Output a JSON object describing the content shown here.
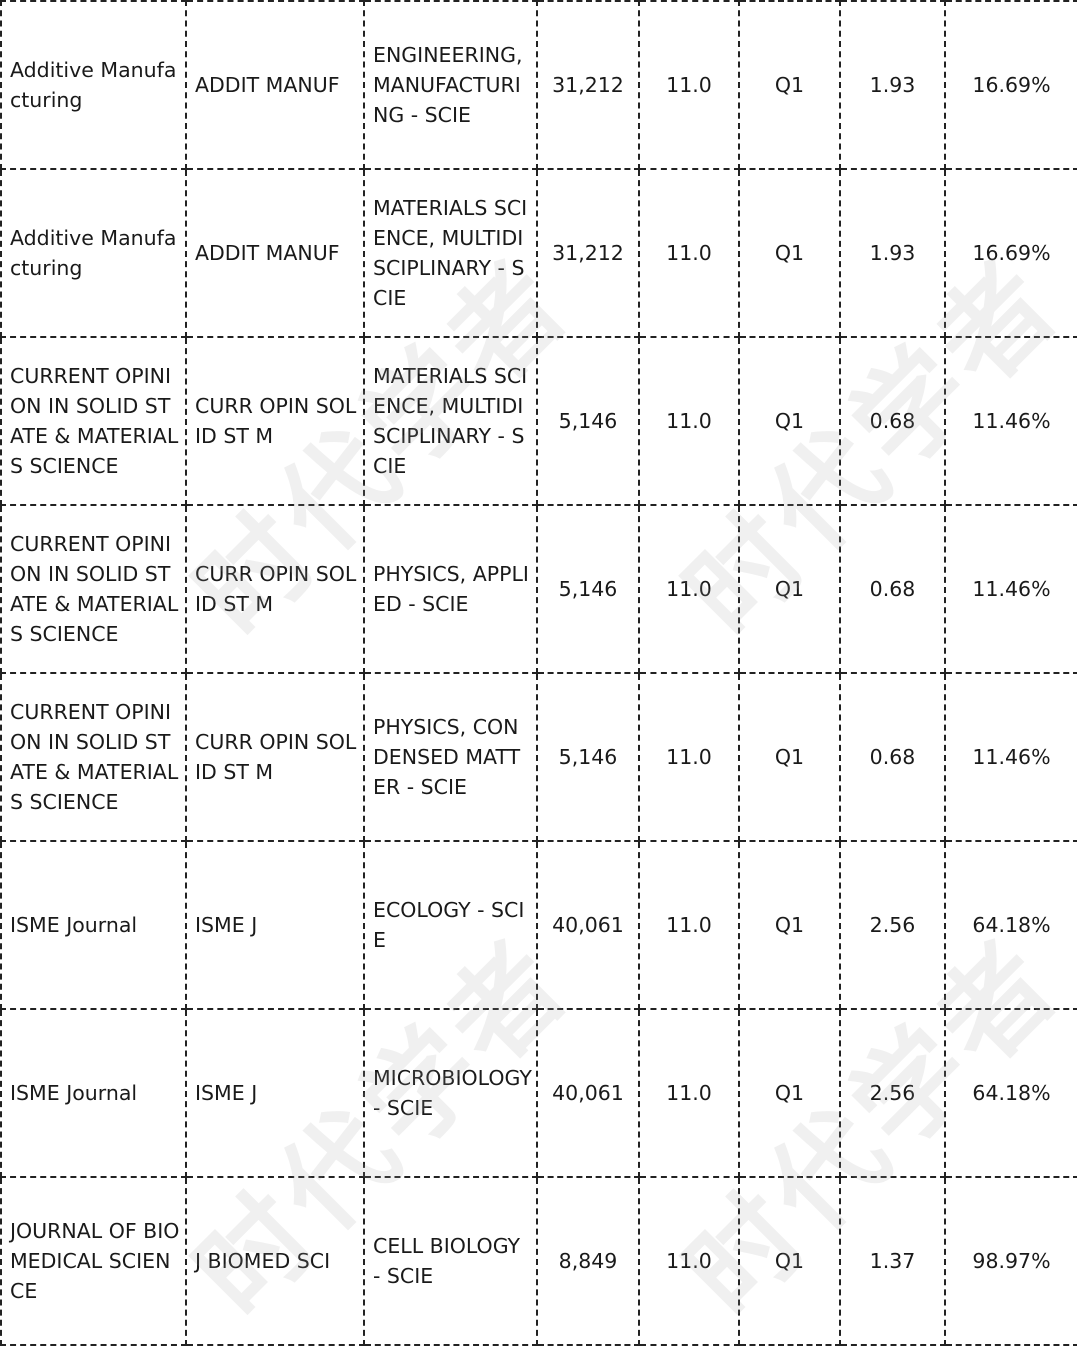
{
  "rows": [
    {
      "full_title": "Additive Manufacturing",
      "abbrev": "ADDIT MANUF",
      "category": "ENGINEERING, MANUFACTURING - SCIE",
      "citations": "31,212",
      "jif": "11.0",
      "quartile": "Q1",
      "jci": "1.93",
      "oa": "16.69%"
    },
    {
      "full_title": "Additive Manufacturing",
      "abbrev": "ADDIT MANUF",
      "category": "MATERIALS SCIENCE, MULTIDISCIPLINARY - SCIE",
      "citations": "31,212",
      "jif": "11.0",
      "quartile": "Q1",
      "jci": "1.93",
      "oa": "16.69%"
    },
    {
      "full_title": "CURRENT OPINION IN SOLID STATE & MATERIALS SCIENCE",
      "abbrev": "CURR OPIN SOLID ST M",
      "category": "MATERIALS SCIENCE, MULTIDISCIPLINARY - SCIE",
      "citations": "5,146",
      "jif": "11.0",
      "quartile": "Q1",
      "jci": "0.68",
      "oa": "11.46%"
    },
    {
      "full_title": "CURRENT OPINION IN SOLID STATE & MATERIALS SCIENCE",
      "abbrev": "CURR OPIN SOLID ST M",
      "category": "PHYSICS, APPLIED - SCIE",
      "citations": "5,146",
      "jif": "11.0",
      "quartile": "Q1",
      "jci": "0.68",
      "oa": "11.46%"
    },
    {
      "full_title": "CURRENT OPINION IN SOLID STATE & MATERIALS SCIENCE",
      "abbrev": "CURR OPIN SOLID ST M",
      "category": "PHYSICS, CONDENSED MATTER - SCIE",
      "citations": "5,146",
      "jif": "11.0",
      "quartile": "Q1",
      "jci": "0.68",
      "oa": "11.46%"
    },
    {
      "full_title": "ISME Journal",
      "abbrev": "ISME J",
      "category": "ECOLOGY - SCIE",
      "citations": "40,061",
      "jif": "11.0",
      "quartile": "Q1",
      "jci": "2.56",
      "oa": "64.18%"
    },
    {
      "full_title": "ISME Journal",
      "abbrev": "ISME J",
      "category": "MICROBIOLOGY - SCIE",
      "citations": "40,061",
      "jif": "11.0",
      "quartile": "Q1",
      "jci": "2.56",
      "oa": "64.18%"
    },
    {
      "full_title": "JOURNAL OF BIOMEDICAL SCIENCE",
      "abbrev": "J BIOMED SCI",
      "category": "CELL BIOLOGY - SCIE",
      "citations": "8,849",
      "jif": "11.0",
      "quartile": "Q1",
      "jci": "1.37",
      "oa": "98.97%"
    }
  ],
  "watermark_text": "时代学者"
}
